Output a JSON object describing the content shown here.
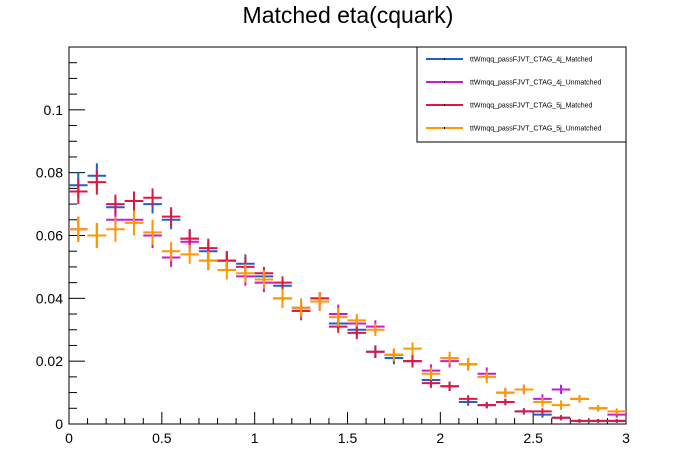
{
  "chart_data": {
    "type": "scatter",
    "title": "Matched eta(cquark)",
    "xlabel": "",
    "ylabel": "",
    "xlim": [
      0,
      3
    ],
    "ylim": [
      0,
      0.12
    ],
    "grid": false,
    "legend_position": "top-right",
    "bin_width": 0.1,
    "x": [
      0.05,
      0.15,
      0.25,
      0.35,
      0.45,
      0.55,
      0.65,
      0.75,
      0.85,
      0.95,
      1.05,
      1.15,
      1.25,
      1.35,
      1.45,
      1.55,
      1.65,
      1.75,
      1.85,
      1.95,
      2.05,
      2.15,
      2.25,
      2.35,
      2.45,
      2.55,
      2.65,
      2.75,
      2.85,
      2.95
    ],
    "x_ticks": [
      {
        "value": 0,
        "label": "0"
      },
      {
        "value": 0.5,
        "label": "0.5"
      },
      {
        "value": 1,
        "label": "1"
      },
      {
        "value": 1.5,
        "label": "1.5"
      },
      {
        "value": 2,
        "label": "2"
      },
      {
        "value": 2.5,
        "label": "2.5"
      },
      {
        "value": 3,
        "label": "3"
      }
    ],
    "y_ticks": [
      {
        "value": 0,
        "label": "0"
      },
      {
        "value": 0.02,
        "label": "0.02"
      },
      {
        "value": 0.04,
        "label": "0.04"
      },
      {
        "value": 0.06,
        "label": "0.06"
      },
      {
        "value": 0.08,
        "label": "0.08"
      },
      {
        "value": 0.1,
        "label": "0.1"
      }
    ],
    "series": [
      {
        "name": "ttWmqq_passFJVT_CTAG_4j_Matched",
        "color": "#1f5fd6",
        "values": [
          0.076,
          0.079,
          0.069,
          0.071,
          0.07,
          0.065,
          0.059,
          0.055,
          0.052,
          0.051,
          0.047,
          0.044,
          0.037,
          0.04,
          0.032,
          0.03,
          0.023,
          0.021,
          0.02,
          0.014,
          0.012,
          0.007,
          0.006,
          0.007,
          0.004,
          0.003,
          0.002,
          0.001,
          0.001,
          0.001
        ],
        "errors": [
          0.004,
          0.004,
          0.003,
          0.003,
          0.003,
          0.003,
          0.003,
          0.003,
          0.003,
          0.003,
          0.002,
          0.002,
          0.002,
          0.002,
          0.002,
          0.002,
          0.002,
          0.002,
          0.002,
          0.0015,
          0.0015,
          0.0012,
          0.001,
          0.001,
          0.001,
          0.001,
          0.0008,
          0.0006,
          0.0006,
          0.0006
        ]
      },
      {
        "name": "ttWmqq_passFJVT_CTAG_4j_Unmatched",
        "color": "#c81ad6",
        "values": [
          0.062,
          0.06,
          0.065,
          0.065,
          0.06,
          0.053,
          0.058,
          0.052,
          0.052,
          0.047,
          0.045,
          0.04,
          0.036,
          0.039,
          0.035,
          0.032,
          0.031,
          0.022,
          0.02,
          0.017,
          0.02,
          0.019,
          0.016,
          0.01,
          0.011,
          0.008,
          0.011,
          0.008,
          0.005,
          0.003
        ],
        "errors": [
          0.004,
          0.004,
          0.004,
          0.004,
          0.004,
          0.003,
          0.003,
          0.003,
          0.003,
          0.003,
          0.003,
          0.003,
          0.003,
          0.003,
          0.003,
          0.002,
          0.002,
          0.002,
          0.002,
          0.002,
          0.002,
          0.002,
          0.002,
          0.0015,
          0.0015,
          0.0015,
          0.0015,
          0.0012,
          0.001,
          0.001
        ]
      },
      {
        "name": "ttWmqq_passFJVT_CTAG_5j_Matched",
        "color": "#e0173f",
        "values": [
          0.074,
          0.077,
          0.07,
          0.071,
          0.072,
          0.066,
          0.059,
          0.056,
          0.052,
          0.05,
          0.048,
          0.045,
          0.036,
          0.04,
          0.031,
          0.029,
          0.023,
          0.022,
          0.02,
          0.013,
          0.012,
          0.008,
          0.006,
          0.007,
          0.004,
          0.004,
          0.002,
          0.001,
          0.001,
          0.001
        ],
        "errors": [
          0.004,
          0.004,
          0.003,
          0.003,
          0.003,
          0.003,
          0.003,
          0.003,
          0.003,
          0.003,
          0.002,
          0.002,
          0.002,
          0.002,
          0.002,
          0.002,
          0.002,
          0.002,
          0.002,
          0.0015,
          0.0015,
          0.0012,
          0.001,
          0.001,
          0.001,
          0.001,
          0.0008,
          0.0006,
          0.0006,
          0.0006
        ]
      },
      {
        "name": "ttWmqq_passFJVT_CTAG_5j_Unmatched",
        "color": "#ff9900",
        "values": [
          0.062,
          0.06,
          0.062,
          0.064,
          0.061,
          0.055,
          0.054,
          0.052,
          0.049,
          0.048,
          0.046,
          0.04,
          0.037,
          0.039,
          0.034,
          0.033,
          0.03,
          0.022,
          0.024,
          0.016,
          0.021,
          0.019,
          0.015,
          0.01,
          0.011,
          0.007,
          0.006,
          0.008,
          0.005,
          0.004
        ],
        "errors": [
          0.004,
          0.004,
          0.004,
          0.004,
          0.004,
          0.003,
          0.003,
          0.003,
          0.003,
          0.003,
          0.003,
          0.003,
          0.003,
          0.003,
          0.003,
          0.002,
          0.002,
          0.002,
          0.002,
          0.002,
          0.002,
          0.002,
          0.002,
          0.0015,
          0.0015,
          0.0015,
          0.0015,
          0.0012,
          0.001,
          0.001
        ]
      }
    ]
  }
}
